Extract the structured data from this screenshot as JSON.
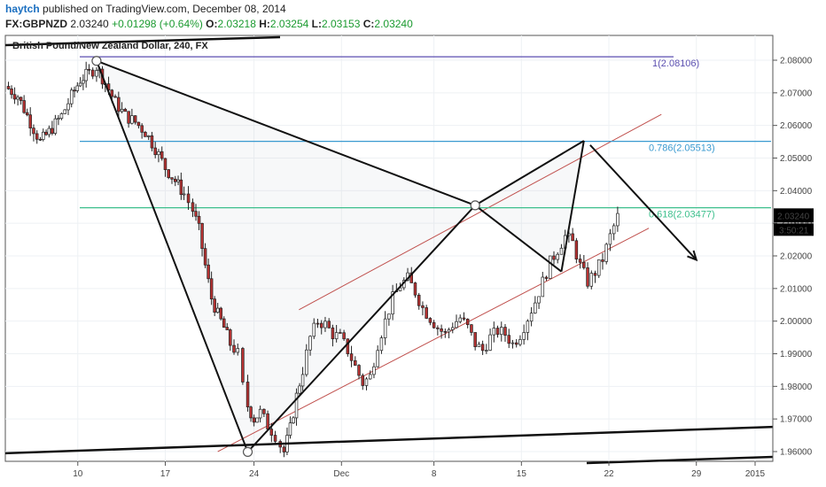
{
  "header": {
    "author": "haytch",
    "published_text": " published on TradingView.com, December 08, 2014",
    "symbol": "FX:GBPNZD",
    "last": "2.03240",
    "change": "+0.01298 (+0.64%)",
    "open_label": "O:",
    "open": "2.03218",
    "high_label": "H:",
    "high": "2.03254",
    "low_label": "L:",
    "low": "2.03153",
    "close_label": "C:",
    "close": "2.03240"
  },
  "chart_data": {
    "type": "candlestick",
    "title": "British Pound/New Zealand Dollar, 240, FX",
    "x_ticks": [
      "10",
      "17",
      "24",
      "Dec",
      "8",
      "15",
      "22",
      "29",
      "2015"
    ],
    "y_ticks": [
      "2.08000",
      "2.07000",
      "2.06000",
      "2.05000",
      "2.04000",
      "2.03000",
      "2.02000",
      "2.01000",
      "2.00000",
      "1.99000",
      "1.98000",
      "1.97000",
      "1.96000"
    ],
    "ylim": [
      1.9585,
      2.0855
    ],
    "price_tag": "2.03240",
    "countdown_tag": "3:50:21",
    "fib_levels": [
      {
        "label": "1(2.08106)",
        "value": 2.08106,
        "color": "#5b4fb0"
      },
      {
        "label": "0.786(2.05513)",
        "value": 2.05513,
        "color": "#3a9ad0"
      },
      {
        "label": "0.618(2.03477)",
        "value": 2.03477,
        "color": "#3cbf8c"
      }
    ],
    "pattern_points": [
      {
        "x": 7.3,
        "y": 2.0798
      },
      {
        "x": 19.4,
        "y": 1.9599
      },
      {
        "x": 37.6,
        "y": 2.0355
      },
      {
        "x": 44.5,
        "y": 2.0152
      },
      {
        "x": 46.3,
        "y": 2.0553
      }
    ],
    "projection_arrow": {
      "from": {
        "x": 46.8,
        "y": 2.054
      },
      "to": {
        "x": 55.3,
        "y": 2.0188
      }
    },
    "channel": {
      "upper": [
        {
          "x": 23.5,
          "y": 2.0035
        },
        {
          "x": 52.5,
          "y": 2.0634
        }
      ],
      "lower": [
        {
          "x": 17.0,
          "y": 1.96
        },
        {
          "x": 51.5,
          "y": 2.0285
        }
      ]
    },
    "support_line": [
      {
        "x": 0.0,
        "y": 1.9595
      },
      {
        "x": 70.0,
        "y": 1.9687
      }
    ],
    "candle_path": [
      [
        0.0,
        2.072
      ],
      [
        1.0,
        2.069
      ],
      [
        2.0,
        2.061
      ],
      [
        2.8,
        2.055
      ],
      [
        3.5,
        2.058
      ],
      [
        4.5,
        2.063
      ],
      [
        5.3,
        2.069
      ],
      [
        6.0,
        2.074
      ],
      [
        6.7,
        2.076
      ],
      [
        7.3,
        2.078
      ],
      [
        8.0,
        2.073
      ],
      [
        8.8,
        2.067
      ],
      [
        9.6,
        2.063
      ],
      [
        10.4,
        2.061
      ],
      [
        11.2,
        2.058
      ],
      [
        12.0,
        2.053
      ],
      [
        12.8,
        2.047
      ],
      [
        13.6,
        2.043
      ],
      [
        14.3,
        2.039
      ],
      [
        15.0,
        2.034
      ],
      [
        15.5,
        2.028
      ],
      [
        16.0,
        2.017
      ],
      [
        16.5,
        2.007
      ],
      [
        17.0,
        2.002
      ],
      [
        17.5,
        1.998
      ],
      [
        18.0,
        1.993
      ],
      [
        18.6,
        1.99
      ],
      [
        19.0,
        1.98
      ],
      [
        19.4,
        1.974
      ],
      [
        19.9,
        1.97
      ],
      [
        20.4,
        1.972
      ],
      [
        21.0,
        1.968
      ],
      [
        21.6,
        1.965
      ],
      [
        22.0,
        1.962
      ],
      [
        22.3,
        1.9599
      ],
      [
        22.8,
        1.967
      ],
      [
        23.3,
        1.977
      ],
      [
        23.8,
        1.985
      ],
      [
        24.4,
        1.995
      ],
      [
        25.0,
        2.0
      ],
      [
        25.6,
        1.999
      ],
      [
        26.2,
        1.996
      ],
      [
        26.8,
        1.995
      ],
      [
        27.4,
        1.991
      ],
      [
        28.0,
        1.986
      ],
      [
        28.6,
        1.981
      ],
      [
        29.2,
        1.983
      ],
      [
        29.8,
        1.993
      ],
      [
        30.4,
        2.0
      ],
      [
        31.0,
        2.007
      ],
      [
        31.6,
        2.011
      ],
      [
        32.2,
        2.013
      ],
      [
        32.8,
        2.009
      ],
      [
        33.4,
        2.004
      ],
      [
        34.0,
        2.001
      ],
      [
        34.6,
        1.998
      ],
      [
        35.2,
        1.996
      ],
      [
        35.8,
        1.999
      ],
      [
        36.4,
        2.001
      ],
      [
        37.0,
        1.998
      ],
      [
        37.6,
        1.993
      ],
      [
        38.2,
        1.991
      ],
      [
        38.8,
        1.995
      ],
      [
        39.4,
        1.997
      ],
      [
        40.0,
        1.996
      ],
      [
        40.6,
        1.993
      ],
      [
        41.2,
        1.996
      ],
      [
        41.8,
        2.001
      ],
      [
        42.4,
        2.006
      ],
      [
        43.0,
        2.012
      ],
      [
        43.6,
        2.018
      ],
      [
        44.2,
        2.022
      ],
      [
        44.8,
        2.026
      ],
      [
        45.4,
        2.024
      ],
      [
        46.0,
        2.017
      ],
      [
        46.6,
        2.012
      ],
      [
        47.2,
        2.015
      ],
      [
        47.8,
        2.019
      ],
      [
        48.4,
        2.026
      ],
      [
        49.0,
        2.032
      ]
    ]
  }
}
